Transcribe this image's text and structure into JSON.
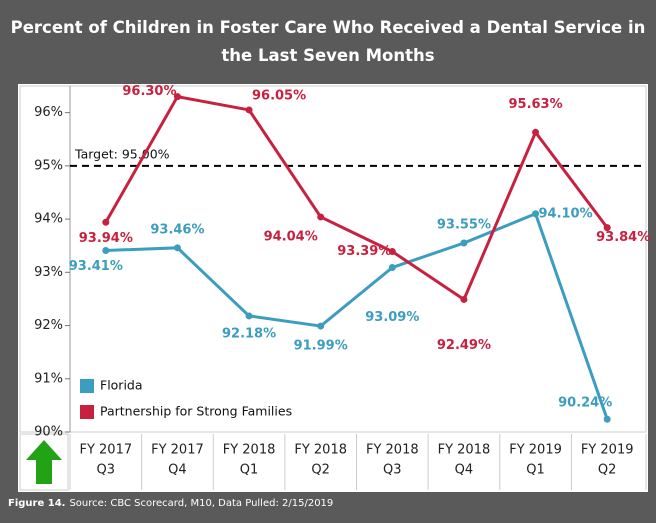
{
  "title": "Percent of Children in Foster Care Who Received a Dental Service in the Last Seven Months",
  "footer": {
    "figure": "Figure 14.",
    "source": "Source: CBC Scorecard, M10, Data Pulled: 2/15/2019"
  },
  "chart_data": {
    "type": "line",
    "categories": [
      [
        "FY 2017",
        "Q3"
      ],
      [
        "FY 2017",
        "Q4"
      ],
      [
        "FY 2018",
        "Q1"
      ],
      [
        "FY 2018",
        "Q2"
      ],
      [
        "FY 2018",
        "Q3"
      ],
      [
        "FY 2018",
        "Q4"
      ],
      [
        "FY 2019",
        "Q1"
      ],
      [
        "FY 2019",
        "Q2"
      ]
    ],
    "series": [
      {
        "name": "Florida",
        "color": "#3b9dbf",
        "values": [
          93.41,
          93.46,
          92.18,
          91.99,
          93.09,
          93.55,
          94.1,
          90.24
        ],
        "value_labels": [
          "93.41%",
          "93.46%",
          "92.18%",
          "91.99%",
          "93.09%",
          "93.55%",
          "94.10%",
          "90.24%"
        ]
      },
      {
        "name": "Partnership for Strong Families",
        "color": "#c8213f",
        "values": [
          93.94,
          96.3,
          96.05,
          94.04,
          93.39,
          92.49,
          95.63,
          93.84
        ],
        "value_labels": [
          "93.94%",
          "96.30%",
          "96.05%",
          "94.04%",
          "93.39%",
          "92.49%",
          "95.63%",
          "93.84%"
        ]
      }
    ],
    "target": 95,
    "target_label": "Target: 95.00%",
    "ylim": [
      90,
      96.5
    ],
    "yticks": [
      {
        "value": 90,
        "label": "90%"
      },
      {
        "value": 91,
        "label": "91%"
      },
      {
        "value": 92,
        "label": "92%"
      },
      {
        "value": 93,
        "label": "93%"
      },
      {
        "value": 94,
        "label": "94%"
      },
      {
        "value": 95,
        "label": "95%"
      },
      {
        "value": 96,
        "label": "96%"
      }
    ],
    "legend": "lower left"
  }
}
